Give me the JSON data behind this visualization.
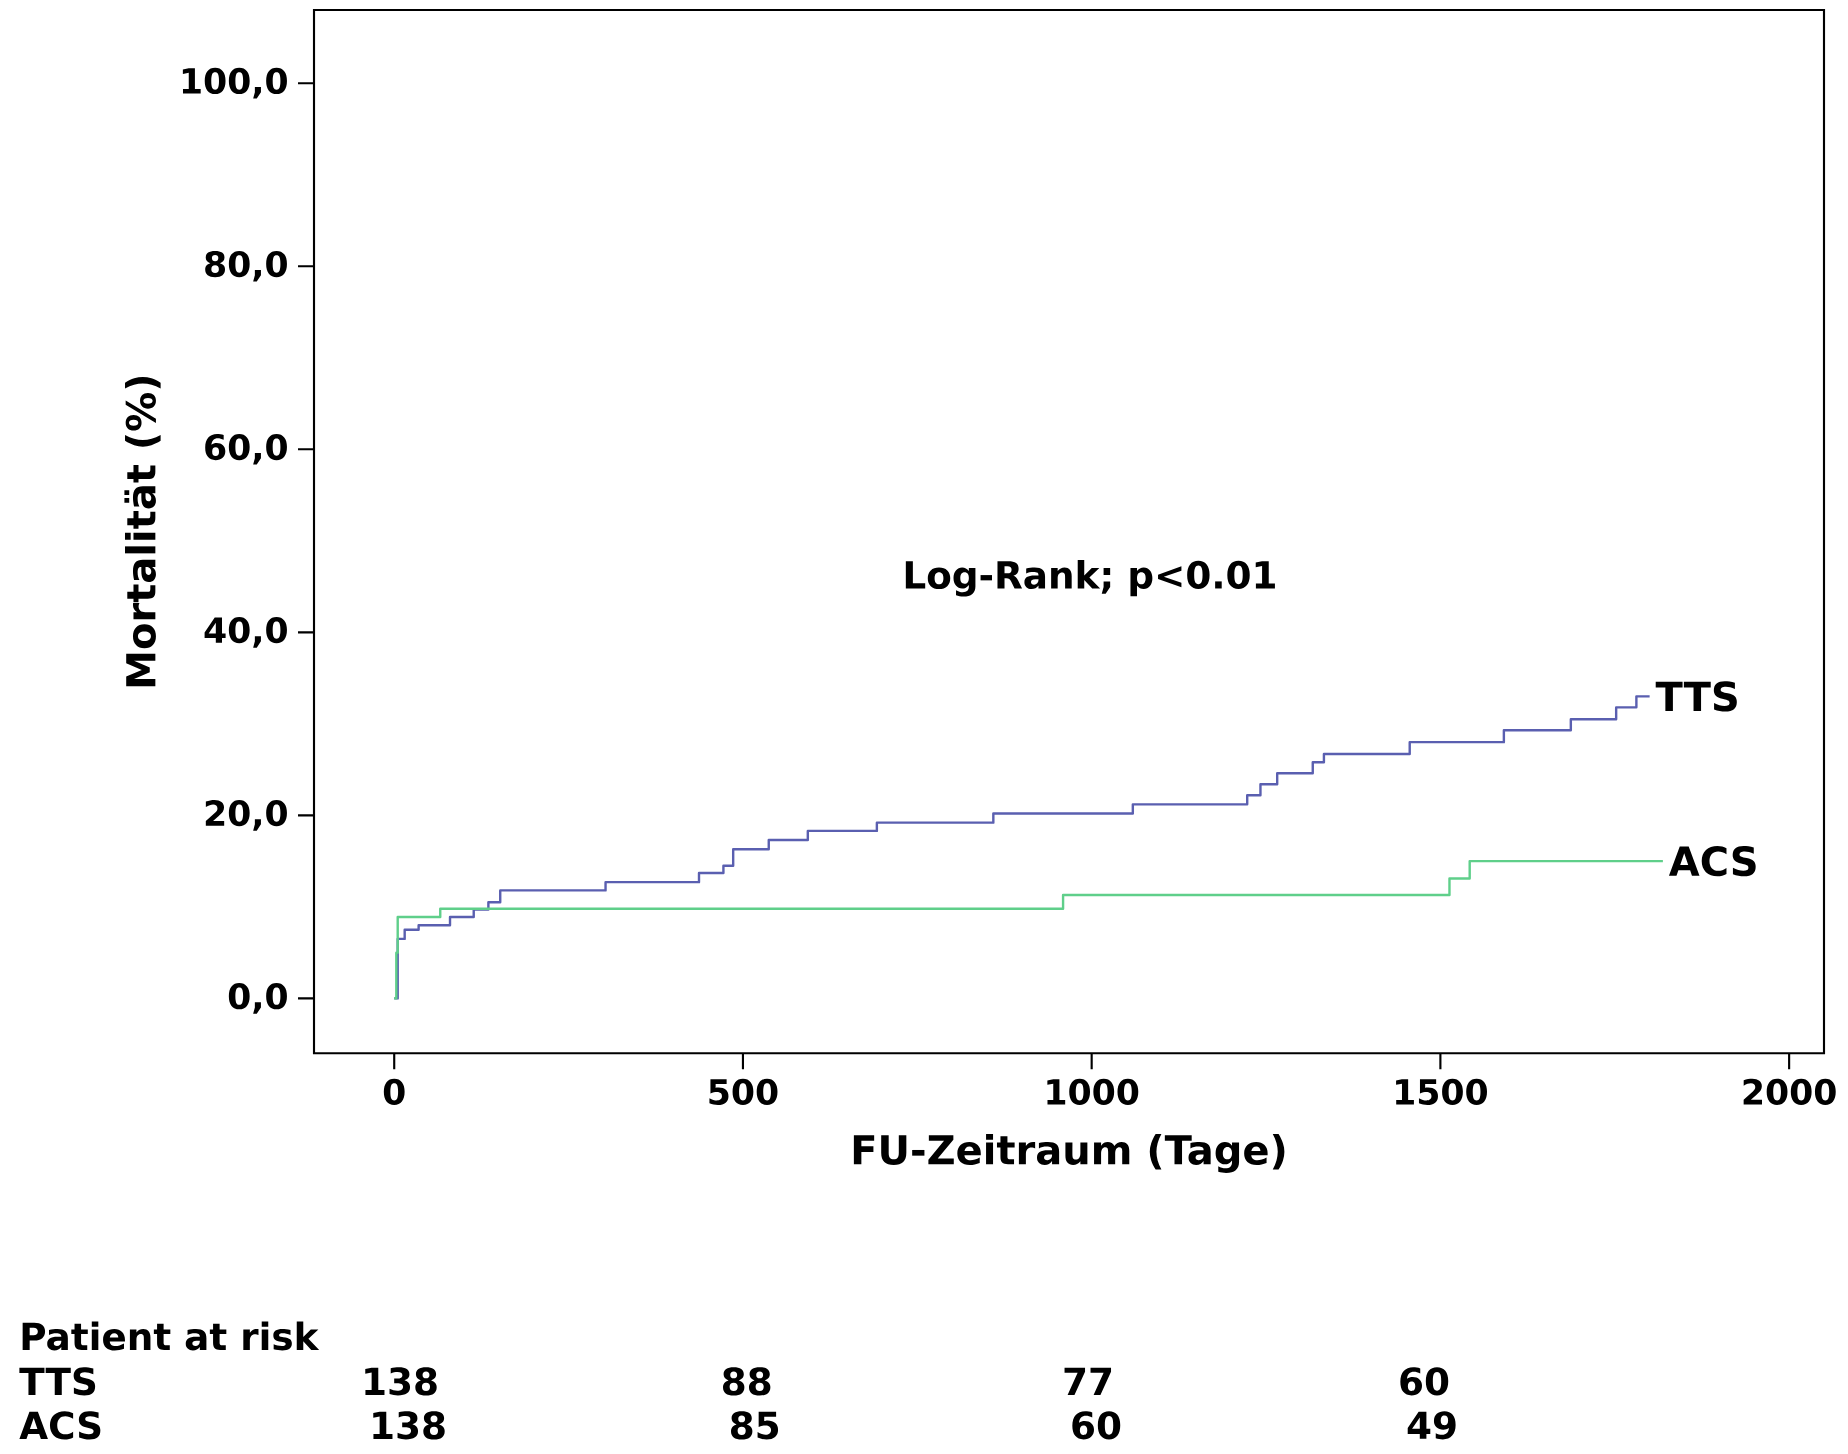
{
  "chart_data": {
    "type": "step",
    "xlabel": "FU-Zeitraum (Tage)",
    "ylabel": "Mortalität (%)",
    "xlim": [
      -115,
      2050
    ],
    "ylim": [
      -6,
      108
    ],
    "xticks": [
      0,
      500,
      1000,
      1500,
      2000
    ],
    "yticks": [
      {
        "value": 0,
        "label": "0,0"
      },
      {
        "value": 20,
        "label": "20,0"
      },
      {
        "value": 40,
        "label": "40,0"
      },
      {
        "value": 60,
        "label": "60,0"
      },
      {
        "value": 80,
        "label": "80,0"
      },
      {
        "value": 100,
        "label": "100,0"
      }
    ],
    "series": [
      {
        "name": "TTS",
        "color": "#5a5fb0",
        "x": [
          0,
          5,
          15,
          35,
          80,
          114,
          135,
          152,
          303,
          437,
          472,
          486,
          537,
          593,
          692,
          859,
          1059,
          1223,
          1242,
          1266,
          1317,
          1333,
          1456,
          1591,
          1687,
          1752,
          1781,
          1800
        ],
        "values": [
          0,
          6.5,
          7.5,
          8.0,
          8.9,
          9.7,
          10.5,
          11.8,
          12.7,
          13.7,
          14.5,
          16.3,
          17.3,
          18.3,
          19.2,
          20.2,
          21.2,
          22.2,
          23.4,
          24.6,
          25.8,
          26.7,
          28.0,
          29.3,
          30.5,
          31.8,
          33.0,
          33.0
        ]
      },
      {
        "name": "ACS",
        "color": "#5fcf8a",
        "x": [
          0,
          3,
          5,
          66,
          959,
          1513,
          1542,
          1819
        ],
        "values": [
          0,
          5,
          8.9,
          9.8,
          11.3,
          13.1,
          15.0,
          15.0
        ]
      }
    ],
    "annotations": [
      "Log-Rank; p<0.01",
      "Patient at risk",
      "TTS",
      "138",
      "88",
      "77",
      "60",
      "ACS",
      "138",
      "85",
      "60",
      "49"
    ]
  }
}
